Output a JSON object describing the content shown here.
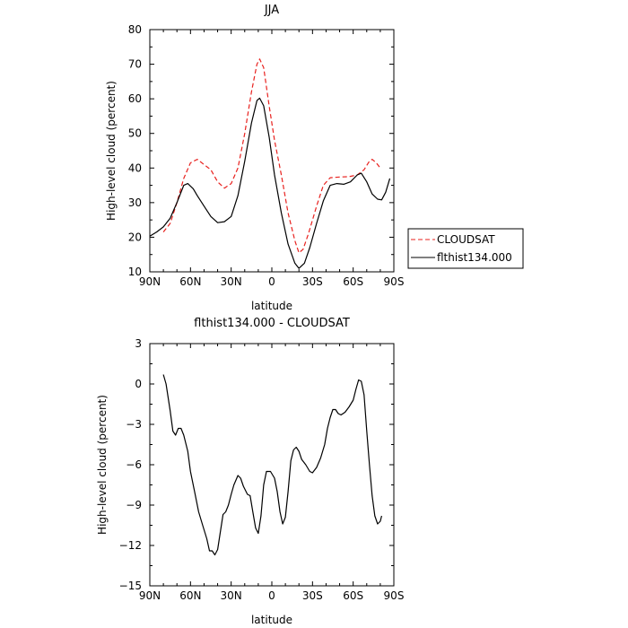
{
  "chart_data": [
    {
      "type": "line",
      "title": "JJA",
      "xlabel": "latitude",
      "ylabel": "High-level cloud (percent)",
      "ylim": [
        10,
        80
      ],
      "xlim": [
        90,
        -90
      ],
      "xticks": [
        90,
        60,
        30,
        0,
        -30,
        -60,
        -90
      ],
      "xtick_labels": [
        "90N",
        "60N",
        "30N",
        "0",
        "30S",
        "60S",
        "90S"
      ],
      "yticks": [
        10,
        20,
        30,
        40,
        50,
        60,
        70,
        80
      ],
      "ytick_labels": [
        "10",
        "20",
        "30",
        "40",
        "50",
        "60",
        "70",
        "80"
      ],
      "legend": "right",
      "series": [
        {
          "name": "CLOUDSAT",
          "color": "#e8211e",
          "dash": "dashed",
          "points": [
            [
              80,
              21.5
            ],
            [
              75,
              24
            ],
            [
              70,
              30
            ],
            [
              65,
              37
            ],
            [
              60,
              41.5
            ],
            [
              55,
              42.5
            ],
            [
              50,
              41
            ],
            [
              45,
              39.5
            ],
            [
              40,
              36
            ],
            [
              35,
              34.2
            ],
            [
              30,
              35.5
            ],
            [
              25,
              40
            ],
            [
              20,
              50
            ],
            [
              15,
              62
            ],
            [
              11,
              70
            ],
            [
              9,
              71.5
            ],
            [
              6,
              69
            ],
            [
              2,
              58
            ],
            [
              -2,
              48
            ],
            [
              -7,
              38
            ],
            [
              -12,
              27
            ],
            [
              -17,
              19
            ],
            [
              -20,
              15.5
            ],
            [
              -23,
              16.5
            ],
            [
              -27,
              21
            ],
            [
              -33,
              29
            ],
            [
              -38,
              35
            ],
            [
              -43,
              37.2
            ],
            [
              -50,
              37.4
            ],
            [
              -57,
              37.5
            ],
            [
              -63,
              38
            ],
            [
              -68,
              39.5
            ],
            [
              -72,
              42
            ],
            [
              -74,
              42.5
            ],
            [
              -77,
              41.5
            ],
            [
              -80,
              40
            ]
          ]
        },
        {
          "name": "flthist134.000",
          "color": "#000000",
          "dash": "solid",
          "points": [
            [
              90,
              20.3
            ],
            [
              85,
              21.5
            ],
            [
              80,
              23
            ],
            [
              75,
              25.5
            ],
            [
              70,
              30
            ],
            [
              65,
              35
            ],
            [
              62,
              35.5
            ],
            [
              58,
              34
            ],
            [
              55,
              32
            ],
            [
              50,
              29
            ],
            [
              45,
              26
            ],
            [
              40,
              24.2
            ],
            [
              35,
              24.5
            ],
            [
              30,
              26
            ],
            [
              25,
              32
            ],
            [
              20,
              42
            ],
            [
              15,
              53
            ],
            [
              11,
              59.5
            ],
            [
              9,
              60.2
            ],
            [
              6,
              58
            ],
            [
              2,
              49
            ],
            [
              -2,
              38
            ],
            [
              -7,
              27
            ],
            [
              -12,
              18
            ],
            [
              -17,
              12.5
            ],
            [
              -20,
              11
            ],
            [
              -24,
              12.5
            ],
            [
              -28,
              17
            ],
            [
              -33,
              24
            ],
            [
              -38,
              30.5
            ],
            [
              -43,
              35
            ],
            [
              -48,
              35.5
            ],
            [
              -53,
              35.3
            ],
            [
              -58,
              36
            ],
            [
              -63,
              38
            ],
            [
              -66,
              38.5
            ],
            [
              -70,
              36
            ],
            [
              -74,
              32.5
            ],
            [
              -78,
              31
            ],
            [
              -81,
              30.8
            ],
            [
              -84,
              33
            ],
            [
              -87,
              37
            ]
          ]
        }
      ]
    },
    {
      "type": "line",
      "title": "flthist134.000 - CLOUDSAT",
      "xlabel": "latitude",
      "ylabel": "High-level cloud (percent)",
      "ylim": [
        -15,
        3
      ],
      "xlim": [
        90,
        -90
      ],
      "xticks": [
        90,
        60,
        30,
        0,
        -30,
        -60,
        -90
      ],
      "xtick_labels": [
        "90N",
        "60N",
        "30N",
        "0",
        "30S",
        "60S",
        "90S"
      ],
      "yticks": [
        -15,
        -12,
        -9,
        -6,
        -3,
        0,
        3
      ],
      "ytick_labels": [
        "−15",
        "−12",
        "−9",
        "−6",
        "−3",
        "0",
        "3"
      ],
      "series": [
        {
          "name": "",
          "color": "#000000",
          "dash": "solid",
          "points": [
            [
              80,
              0.7
            ],
            [
              78,
              0
            ],
            [
              75,
              -2
            ],
            [
              73,
              -3.5
            ],
            [
              71,
              -3.8
            ],
            [
              69,
              -3.3
            ],
            [
              67,
              -3.3
            ],
            [
              65,
              -3.8
            ],
            [
              62,
              -5
            ],
            [
              60,
              -6.5
            ],
            [
              57,
              -8
            ],
            [
              54,
              -9.5
            ],
            [
              51,
              -10.5
            ],
            [
              48,
              -11.5
            ],
            [
              46,
              -12.4
            ],
            [
              44,
              -12.4
            ],
            [
              42,
              -12.7
            ],
            [
              40,
              -12.3
            ],
            [
              38,
              -11
            ],
            [
              36,
              -9.7
            ],
            [
              34,
              -9.5
            ],
            [
              32,
              -9
            ],
            [
              30,
              -8.2
            ],
            [
              28,
              -7.5
            ],
            [
              25,
              -6.8
            ],
            [
              23,
              -7
            ],
            [
              21,
              -7.6
            ],
            [
              18,
              -8.2
            ],
            [
              16,
              -8.3
            ],
            [
              14,
              -9.5
            ],
            [
              12,
              -10.7
            ],
            [
              10,
              -11.1
            ],
            [
              8,
              -9.8
            ],
            [
              6,
              -7.5
            ],
            [
              4,
              -6.5
            ],
            [
              1,
              -6.5
            ],
            [
              -2,
              -7
            ],
            [
              -4,
              -8
            ],
            [
              -6,
              -9.5
            ],
            [
              -8,
              -10.4
            ],
            [
              -10,
              -9.9
            ],
            [
              -12,
              -8
            ],
            [
              -14,
              -5.7
            ],
            [
              -16,
              -4.9
            ],
            [
              -18,
              -4.7
            ],
            [
              -20,
              -5
            ],
            [
              -22,
              -5.6
            ],
            [
              -25,
              -6
            ],
            [
              -28,
              -6.5
            ],
            [
              -30,
              -6.6
            ],
            [
              -33,
              -6.2
            ],
            [
              -36,
              -5.5
            ],
            [
              -39,
              -4.5
            ],
            [
              -41,
              -3.3
            ],
            [
              -43,
              -2.5
            ],
            [
              -45,
              -1.9
            ],
            [
              -47,
              -1.9
            ],
            [
              -49,
              -2.2
            ],
            [
              -51,
              -2.3
            ],
            [
              -54,
              -2.1
            ],
            [
              -57,
              -1.7
            ],
            [
              -60,
              -1.2
            ],
            [
              -62,
              -0.4
            ],
            [
              -64,
              0.3
            ],
            [
              -66,
              0.2
            ],
            [
              -68,
              -0.8
            ],
            [
              -70,
              -3.5
            ],
            [
              -72,
              -6
            ],
            [
              -74,
              -8.3
            ],
            [
              -76,
              -9.8
            ],
            [
              -78,
              -10.4
            ],
            [
              -80,
              -10.2
            ],
            [
              -81,
              -9.8
            ]
          ]
        }
      ]
    }
  ]
}
